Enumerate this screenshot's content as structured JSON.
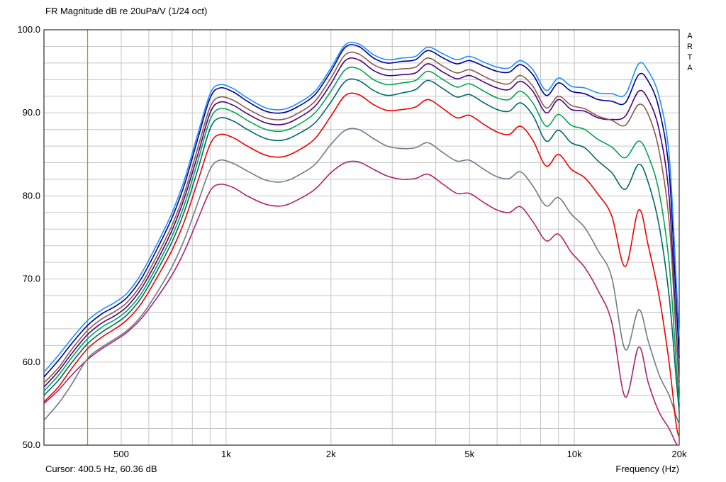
{
  "header": {
    "title": "FR Magnitude dB re 20uPa/V (1/24 oct)"
  },
  "watermark": {
    "letters": [
      "A",
      "R",
      "T",
      "A"
    ]
  },
  "status": {
    "cursor_text": "Cursor: 400.5 Hz, 60.36 dB",
    "axis_text": "Frequency (Hz)"
  },
  "chart_data": {
    "type": "line",
    "title": "FR Magnitude dB re 20uPa/V (1/24 oct)",
    "xlabel": "Frequency (Hz)",
    "ylabel": "Magnitude dB re 20uPa/V",
    "x_scale": "log",
    "xlim": [
      300,
      20000
    ],
    "ylim": [
      50,
      100
    ],
    "grid": {
      "color": "#c6c6c6",
      "y_step": 2,
      "x_lines": [
        400,
        500,
        600,
        700,
        800,
        900,
        1000,
        2000,
        3000,
        4000,
        5000,
        6000,
        7000,
        8000,
        9000,
        10000,
        20000
      ]
    },
    "x_ticks": [
      {
        "value": 500,
        "label": "500"
      },
      {
        "value": 1000,
        "label": "1k"
      },
      {
        "value": 2000,
        "label": "2k"
      },
      {
        "value": 5000,
        "label": "5k"
      },
      {
        "value": 10000,
        "label": "10k"
      },
      {
        "value": 20000,
        "label": "20k"
      }
    ],
    "y_ticks": [
      {
        "value": 100,
        "label": "100.0"
      },
      {
        "value": 90,
        "label": "90.0"
      },
      {
        "value": 80,
        "label": "80.0"
      },
      {
        "value": 70,
        "label": "70.0"
      },
      {
        "value": 60,
        "label": "60.0"
      },
      {
        "value": 50,
        "label": "50.0"
      }
    ],
    "cursor": {
      "freq": 400.5,
      "db": 60.36,
      "color": "#9a9a00"
    },
    "x": [
      300,
      330,
      360,
      400,
      440,
      480,
      520,
      570,
      630,
      700,
      760,
      830,
      900,
      960,
      1050,
      1150,
      1300,
      1450,
      1600,
      1800,
      2000,
      2200,
      2400,
      2650,
      2900,
      3200,
      3500,
      3800,
      4200,
      4600,
      5000,
      5500,
      6000,
      6500,
      7000,
      7600,
      8300,
      9000,
      9800,
      10700,
      11700,
      12800,
      14000,
      15300,
      16300,
      17500,
      18700,
      19600,
      20000
    ],
    "series": [
      {
        "name": "magenta",
        "color": "#b02070",
        "values": [
          55.0,
          56.6,
          58.4,
          60.3,
          61.6,
          62.6,
          63.6,
          65.2,
          67.6,
          70.5,
          73.4,
          77.2,
          80.6,
          81.4,
          81.0,
          80.0,
          79.0,
          78.8,
          79.5,
          80.8,
          82.8,
          84.0,
          84.1,
          83.2,
          82.4,
          82.0,
          82.1,
          82.6,
          81.4,
          80.3,
          80.3,
          79.2,
          78.3,
          78.0,
          78.7,
          76.9,
          74.6,
          75.4,
          73.2,
          71.4,
          68.6,
          64.8,
          55.8,
          61.8,
          57.5,
          54.0,
          52.0,
          50.2,
          50.0
        ]
      },
      {
        "name": "gray",
        "color": "#6e7b8b",
        "values": [
          53.0,
          55.0,
          57.3,
          60.4,
          61.8,
          62.8,
          63.8,
          65.5,
          68.2,
          71.5,
          74.8,
          79.2,
          83.2,
          84.3,
          83.9,
          83.0,
          81.9,
          81.7,
          82.4,
          83.8,
          86.2,
          87.9,
          88.0,
          86.9,
          86.0,
          85.7,
          85.8,
          86.4,
          85.2,
          84.2,
          84.3,
          83.2,
          82.3,
          82.1,
          82.9,
          81.2,
          78.8,
          79.8,
          77.8,
          76.2,
          73.4,
          70.2,
          61.5,
          66.3,
          62.5,
          58.5,
          56.0,
          53.5,
          52.5
        ]
      },
      {
        "name": "red",
        "color": "#ee0000",
        "values": [
          55.2,
          57.0,
          59.2,
          61.6,
          63.0,
          64.0,
          65.1,
          67.0,
          70.0,
          73.5,
          77.0,
          81.8,
          86.2,
          87.4,
          87.0,
          86.0,
          84.9,
          84.7,
          85.4,
          86.9,
          89.6,
          92.1,
          92.2,
          91.0,
          90.3,
          90.4,
          90.7,
          91.6,
          90.5,
          89.4,
          89.7,
          88.6,
          87.7,
          87.4,
          88.4,
          86.7,
          83.6,
          85.0,
          83.2,
          82.2,
          80.2,
          77.6,
          71.5,
          78.3,
          74.0,
          68.0,
          60.0,
          52.5,
          51.0
        ]
      },
      {
        "name": "teal",
        "color": "#006868",
        "values": [
          56.0,
          57.8,
          59.9,
          62.2,
          63.6,
          64.6,
          65.7,
          67.7,
          70.8,
          74.5,
          78.2,
          83.2,
          88.1,
          89.4,
          89.0,
          88.0,
          86.9,
          86.7,
          87.4,
          88.8,
          91.3,
          93.8,
          93.9,
          92.7,
          92.1,
          92.4,
          92.8,
          93.9,
          92.9,
          91.9,
          92.2,
          91.2,
          90.4,
          90.2,
          91.2,
          89.7,
          86.6,
          87.9,
          86.4,
          85.8,
          84.2,
          82.8,
          80.8,
          83.8,
          81.6,
          76.5,
          68.0,
          58.0,
          54.0
        ]
      },
      {
        "name": "green",
        "color": "#00a550",
        "values": [
          56.5,
          58.4,
          60.5,
          62.8,
          64.2,
          65.1,
          66.2,
          68.2,
          71.4,
          75.2,
          79.0,
          84.2,
          89.2,
          90.5,
          90.1,
          89.1,
          88.0,
          87.8,
          88.5,
          90.0,
          92.6,
          95.2,
          95.3,
          94.0,
          93.4,
          93.6,
          93.9,
          95.0,
          94.0,
          93.1,
          93.5,
          92.6,
          91.8,
          91.6,
          92.6,
          91.2,
          88.4,
          89.8,
          88.5,
          88.0,
          86.8,
          85.9,
          84.6,
          86.6,
          84.8,
          80.5,
          72.0,
          60.0,
          55.0
        ]
      },
      {
        "name": "purple",
        "color": "#4b0082",
        "values": [
          57.0,
          58.9,
          61.0,
          63.3,
          64.7,
          65.6,
          66.7,
          68.8,
          72.0,
          75.9,
          79.8,
          85.0,
          90.0,
          91.3,
          90.9,
          89.9,
          88.8,
          88.6,
          89.3,
          90.8,
          93.5,
          96.3,
          96.4,
          95.1,
          94.5,
          94.6,
          94.8,
          95.9,
          94.9,
          94.1,
          94.5,
          93.7,
          93.0,
          92.8,
          93.8,
          92.6,
          90.0,
          91.6,
          90.4,
          90.2,
          89.4,
          89.2,
          89.6,
          92.6,
          91.6,
          88.0,
          80.0,
          64.0,
          57.5
        ]
      },
      {
        "name": "brown",
        "color": "#8b5a4a",
        "values": [
          57.5,
          59.3,
          61.5,
          63.8,
          65.2,
          66.1,
          67.2,
          69.3,
          72.6,
          76.5,
          80.4,
          85.8,
          90.7,
          91.9,
          91.5,
          90.5,
          89.4,
          89.2,
          89.9,
          91.4,
          94.2,
          97.0,
          97.1,
          95.8,
          95.2,
          95.3,
          95.5,
          96.6,
          95.6,
          94.8,
          95.2,
          94.4,
          93.7,
          93.5,
          94.5,
          93.2,
          90.6,
          92.0,
          90.9,
          90.5,
          89.6,
          89.1,
          88.5,
          91.0,
          89.8,
          85.5,
          77.0,
          63.0,
          57.0
        ]
      },
      {
        "name": "navy",
        "color": "#00008b",
        "values": [
          58.2,
          60.2,
          62.2,
          64.4,
          65.8,
          66.7,
          67.8,
          70.0,
          73.4,
          77.4,
          81.4,
          86.9,
          91.8,
          93.0,
          92.5,
          91.4,
          90.2,
          90.0,
          90.7,
          92.2,
          95.0,
          97.9,
          98.0,
          96.6,
          96.0,
          96.2,
          96.4,
          97.5,
          96.6,
          95.9,
          96.3,
          95.6,
          95.0,
          94.9,
          95.8,
          94.6,
          92.1,
          93.6,
          92.6,
          92.3,
          91.6,
          91.4,
          91.2,
          94.6,
          93.8,
          90.5,
          83.0,
          67.5,
          60.5
        ]
      },
      {
        "name": "blue",
        "color": "#1e90ff",
        "values": [
          58.8,
          60.8,
          62.8,
          65.0,
          66.3,
          67.2,
          68.3,
          70.6,
          74.0,
          78.0,
          82.0,
          87.5,
          92.3,
          93.4,
          92.9,
          91.8,
          90.6,
          90.4,
          91.1,
          92.6,
          95.4,
          98.2,
          98.3,
          97.0,
          96.4,
          96.6,
          96.8,
          97.9,
          97.1,
          96.4,
          96.8,
          96.1,
          95.5,
          95.4,
          96.3,
          95.2,
          92.7,
          94.2,
          93.2,
          93.0,
          92.4,
          92.3,
          92.2,
          95.9,
          95.0,
          92.0,
          85.0,
          70.0,
          63.0
        ]
      }
    ]
  }
}
